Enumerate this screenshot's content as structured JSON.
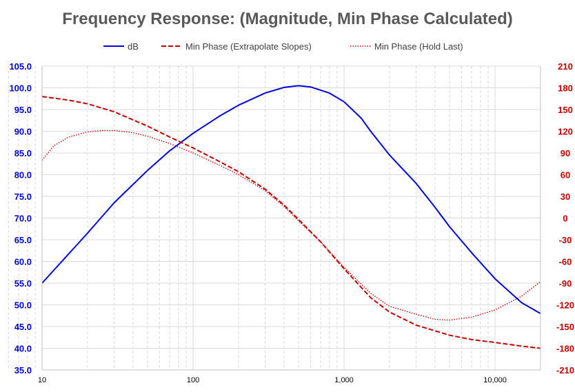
{
  "chart_data": {
    "type": "line",
    "title": "Frequency Response: (Magnitude, Min Phase Calculated)",
    "x_scale": "log",
    "xlim": [
      10,
      20000
    ],
    "x_ticks": [
      10,
      100,
      1000,
      10000
    ],
    "x_tick_labels": [
      "10",
      "100",
      "1,000",
      "10,000"
    ],
    "y_left": {
      "min": 35,
      "max": 105,
      "step": 5,
      "tick_labels": [
        "105.0",
        "100.0",
        "95.0",
        "90.0",
        "85.0",
        "80.0",
        "75.0",
        "70.0",
        "65.0",
        "60.0",
        "55.0",
        "50.0",
        "45.0",
        "40.0",
        "35.0"
      ],
      "color": "#0000CC"
    },
    "y_right": {
      "min": -210,
      "max": 210,
      "step": 30,
      "tick_labels": [
        "210",
        "180",
        "150",
        "120",
        "90",
        "60",
        "30",
        "0",
        "-30",
        "-60",
        "-90",
        "-120",
        "-150",
        "-180",
        "-210"
      ],
      "color": "#C00000"
    },
    "grid": true,
    "legend_position": "top",
    "series": [
      {
        "name": "dB",
        "axis": "left",
        "color": "#0000DD",
        "style": "solid",
        "x": [
          10,
          20,
          30,
          50,
          70,
          100,
          150,
          200,
          300,
          400,
          500,
          600,
          800,
          1000,
          1300,
          1500,
          2000,
          3000,
          4000,
          5000,
          7000,
          10000,
          15000,
          20000
        ],
        "y": [
          55.0,
          66.5,
          73.5,
          81.0,
          85.5,
          89.5,
          93.5,
          96.0,
          98.8,
          100.1,
          100.5,
          100.2,
          98.8,
          96.8,
          93.0,
          90.0,
          84.5,
          78.0,
          72.5,
          68.0,
          62.0,
          56.0,
          50.5,
          48.0
        ]
      },
      {
        "name": "Min Phase (Extrapolate Slopes)",
        "axis": "right",
        "color": "#C00000",
        "style": "dashed",
        "x": [
          10,
          15,
          20,
          30,
          50,
          70,
          100,
          150,
          200,
          300,
          400,
          500,
          700,
          1000,
          1500,
          2000,
          3000,
          5000,
          7000,
          10000,
          15000,
          20000
        ],
        "y": [
          168,
          163,
          158,
          147,
          127,
          112,
          97,
          78,
          64,
          40,
          18,
          -2,
          -33,
          -70,
          -110,
          -130,
          -148,
          -162,
          -168,
          -172,
          -177,
          -180
        ]
      },
      {
        "name": "Min Phase (Hold Last)",
        "axis": "right",
        "color": "#C00000",
        "style": "dotted",
        "x": [
          10,
          12,
          15,
          20,
          25,
          30,
          40,
          50,
          70,
          100,
          150,
          200,
          300,
          400,
          500,
          700,
          1000,
          1500,
          2000,
          3000,
          4000,
          5000,
          7000,
          10000,
          15000,
          20000
        ],
        "y": [
          80,
          100,
          112,
          119,
          121,
          121,
          118,
          113,
          103,
          90,
          73,
          60,
          38,
          16,
          -4,
          -33,
          -68,
          -104,
          -122,
          -133,
          -140,
          -141,
          -137,
          -127,
          -108,
          -88
        ]
      }
    ]
  }
}
